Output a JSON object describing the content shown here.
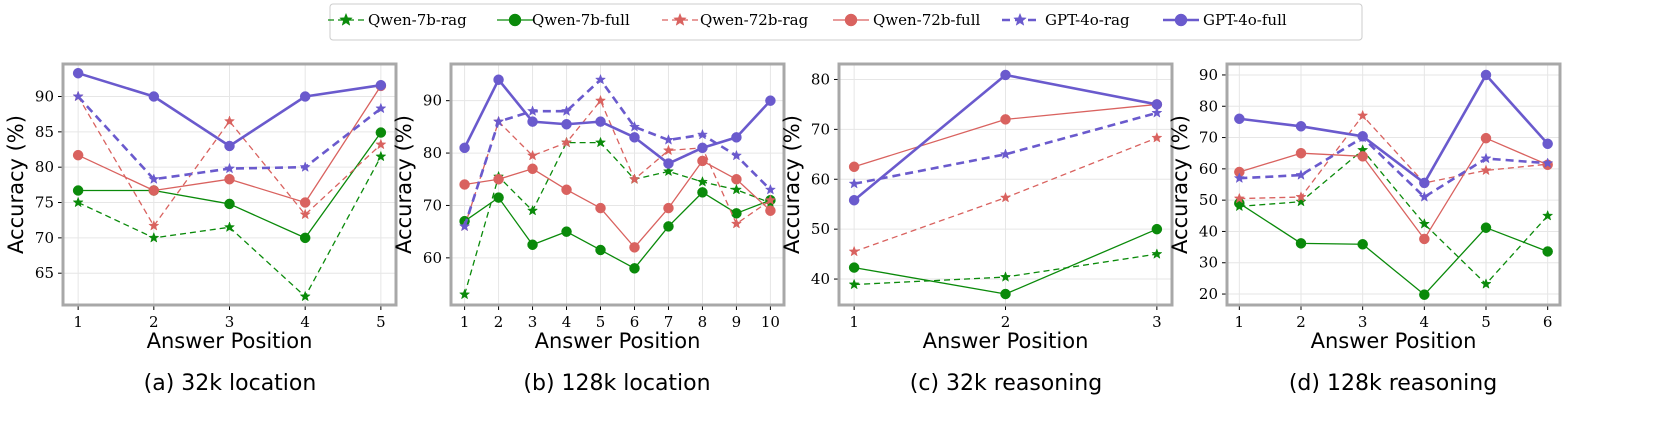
{
  "legend": {
    "entries": [
      {
        "key": "qwen7b_rag",
        "label": "Qwen-7b-rag"
      },
      {
        "key": "qwen7b_full",
        "label": "Qwen-7b-full"
      },
      {
        "key": "qwen72b_rag",
        "label": "Qwen-72b-rag"
      },
      {
        "key": "qwen72b_full",
        "label": "Qwen-72b-full"
      },
      {
        "key": "gpt4o_rag",
        "label": "GPT-4o-rag"
      },
      {
        "key": "gpt4o_full",
        "label": "GPT-4o-full"
      }
    ]
  },
  "styles": {
    "qwen7b_rag": {
      "color": "#0a8a0a",
      "dash": "6,4",
      "marker": "star",
      "width": 1.3
    },
    "qwen7b_full": {
      "color": "#0a8a0a",
      "dash": "",
      "marker": "circle",
      "width": 1.3
    },
    "qwen72b_rag": {
      "color": "#d9625f",
      "dash": "6,4",
      "marker": "star",
      "width": 1.3
    },
    "qwen72b_full": {
      "color": "#d9625f",
      "dash": "",
      "marker": "circle",
      "width": 1.3
    },
    "gpt4o_rag": {
      "color": "#6a5acd",
      "dash": "8,5",
      "marker": "star",
      "width": 2.6
    },
    "gpt4o_full": {
      "color": "#6a5acd",
      "dash": "",
      "marker": "circle",
      "width": 2.6
    }
  },
  "chart_data": [
    {
      "type": "line",
      "caption": "(a) 32k location",
      "xlabel": "Answer Position",
      "ylabel": "Accuracy (%)",
      "x": [
        1,
        2,
        3,
        4,
        5
      ],
      "xlim": [
        0.8,
        5.2
      ],
      "ylim": [
        60.5,
        94.6
      ],
      "yticks": [
        65,
        70,
        75,
        80,
        85,
        90
      ],
      "series": [
        {
          "key": "qwen7b_rag",
          "name": "Qwen-7b-rag",
          "values": [
            75,
            70,
            71.5,
            61.7,
            81.5
          ]
        },
        {
          "key": "qwen7b_full",
          "name": "Qwen-7b-full",
          "values": [
            76.7,
            76.7,
            74.8,
            70,
            84.9
          ]
        },
        {
          "key": "qwen72b_rag",
          "name": "Qwen-72b-rag",
          "values": [
            90,
            71.7,
            86.5,
            73.3,
            83.2
          ]
        },
        {
          "key": "qwen72b_full",
          "name": "Qwen-72b-full",
          "values": [
            81.7,
            76.7,
            78.3,
            75,
            91.5
          ]
        },
        {
          "key": "gpt4o_rag",
          "name": "GPT-4o-rag",
          "values": [
            90,
            78.3,
            79.8,
            80,
            88.3
          ]
        },
        {
          "key": "gpt4o_full",
          "name": "GPT-4o-full",
          "values": [
            93.3,
            90,
            83,
            90,
            91.6
          ]
        }
      ]
    },
    {
      "type": "line",
      "caption": "(b) 128k location",
      "xlabel": "Answer Position",
      "ylabel": "Accuracy (%)",
      "x": [
        1,
        2,
        3,
        4,
        5,
        6,
        7,
        8,
        9,
        10
      ],
      "xlim": [
        0.6,
        10.4
      ],
      "ylim": [
        51,
        97
      ],
      "yticks": [
        60,
        70,
        80,
        90
      ],
      "series": [
        {
          "key": "qwen7b_rag",
          "name": "Qwen-7b-rag",
          "values": [
            53,
            75.5,
            69,
            82,
            82,
            75,
            76.5,
            74.5,
            73,
            70.5
          ]
        },
        {
          "key": "qwen7b_full",
          "name": "Qwen-7b-full",
          "values": [
            67,
            71.5,
            62.5,
            65,
            61.5,
            58,
            66,
            72.5,
            68.5,
            71
          ]
        },
        {
          "key": "qwen72b_rag",
          "name": "Qwen-72b-rag",
          "values": [
            66,
            86,
            79.5,
            82,
            90,
            75,
            80.5,
            81,
            66.5,
            71
          ]
        },
        {
          "key": "qwen72b_full",
          "name": "Qwen-72b-full",
          "values": [
            74,
            75,
            77,
            73,
            69.5,
            62,
            69.5,
            78.5,
            75,
            69
          ]
        },
        {
          "key": "gpt4o_rag",
          "name": "GPT-4o-rag",
          "values": [
            66,
            86,
            88,
            88,
            94,
            85,
            82.5,
            83.5,
            79.5,
            73
          ]
        },
        {
          "key": "gpt4o_full",
          "name": "GPT-4o-full",
          "values": [
            81,
            94,
            86,
            85.5,
            86,
            83,
            78,
            81,
            83,
            90
          ]
        }
      ]
    },
    {
      "type": "line",
      "caption": "(c) 32k reasoning",
      "xlabel": "Answer Position",
      "ylabel": "Accuracy (%)",
      "x": [
        1,
        2,
        3
      ],
      "xlim": [
        0.9,
        3.1
      ],
      "ylim": [
        34.8,
        83.1
      ],
      "yticks": [
        40,
        50,
        60,
        70,
        80
      ],
      "series": [
        {
          "key": "qwen7b_rag",
          "name": "Qwen-7b-rag",
          "values": [
            38.9,
            40.4,
            45
          ]
        },
        {
          "key": "qwen7b_full",
          "name": "Qwen-7b-full",
          "values": [
            42.3,
            37,
            50
          ]
        },
        {
          "key": "qwen72b_rag",
          "name": "Qwen-72b-rag",
          "values": [
            45.5,
            56.3,
            68.3
          ]
        },
        {
          "key": "qwen72b_full",
          "name": "Qwen-72b-full",
          "values": [
            62.5,
            72,
            75
          ]
        },
        {
          "key": "gpt4o_rag",
          "name": "GPT-4o-rag",
          "values": [
            59.1,
            65,
            73.3
          ]
        },
        {
          "key": "gpt4o_full",
          "name": "GPT-4o-full",
          "values": [
            55.8,
            80.9,
            75
          ]
        }
      ]
    },
    {
      "type": "line",
      "caption": "(d) 128k reasoning",
      "xlabel": "Answer Position",
      "ylabel": "Accuracy (%)",
      "x": [
        1,
        2,
        3,
        4,
        5,
        6
      ],
      "xlim": [
        0.8,
        6.2
      ],
      "ylim": [
        16.5,
        93.5
      ],
      "yticks": [
        20,
        30,
        40,
        50,
        60,
        70,
        80,
        90
      ],
      "series": [
        {
          "key": "qwen7b_rag",
          "name": "Qwen-7b-rag",
          "values": [
            48,
            49.5,
            66,
            42.4,
            23.2,
            45
          ]
        },
        {
          "key": "qwen7b_full",
          "name": "Qwen-7b-full",
          "values": [
            49,
            36.2,
            35.9,
            19.8,
            41.2,
            33.6
          ]
        },
        {
          "key": "qwen72b_rag",
          "name": "Qwen-72b-rag",
          "values": [
            50.5,
            51,
            77,
            55.5,
            59.5,
            61.5
          ]
        },
        {
          "key": "qwen72b_full",
          "name": "Qwen-72b-full",
          "values": [
            59,
            65,
            64,
            37.6,
            69.8,
            61.3
          ]
        },
        {
          "key": "gpt4o_rag",
          "name": "GPT-4o-rag",
          "values": [
            57,
            58,
            70,
            51,
            63.3,
            61.8
          ]
        },
        {
          "key": "gpt4o_full",
          "name": "GPT-4o-full",
          "values": [
            76,
            73.6,
            70.4,
            55.5,
            90,
            68
          ]
        }
      ]
    }
  ]
}
